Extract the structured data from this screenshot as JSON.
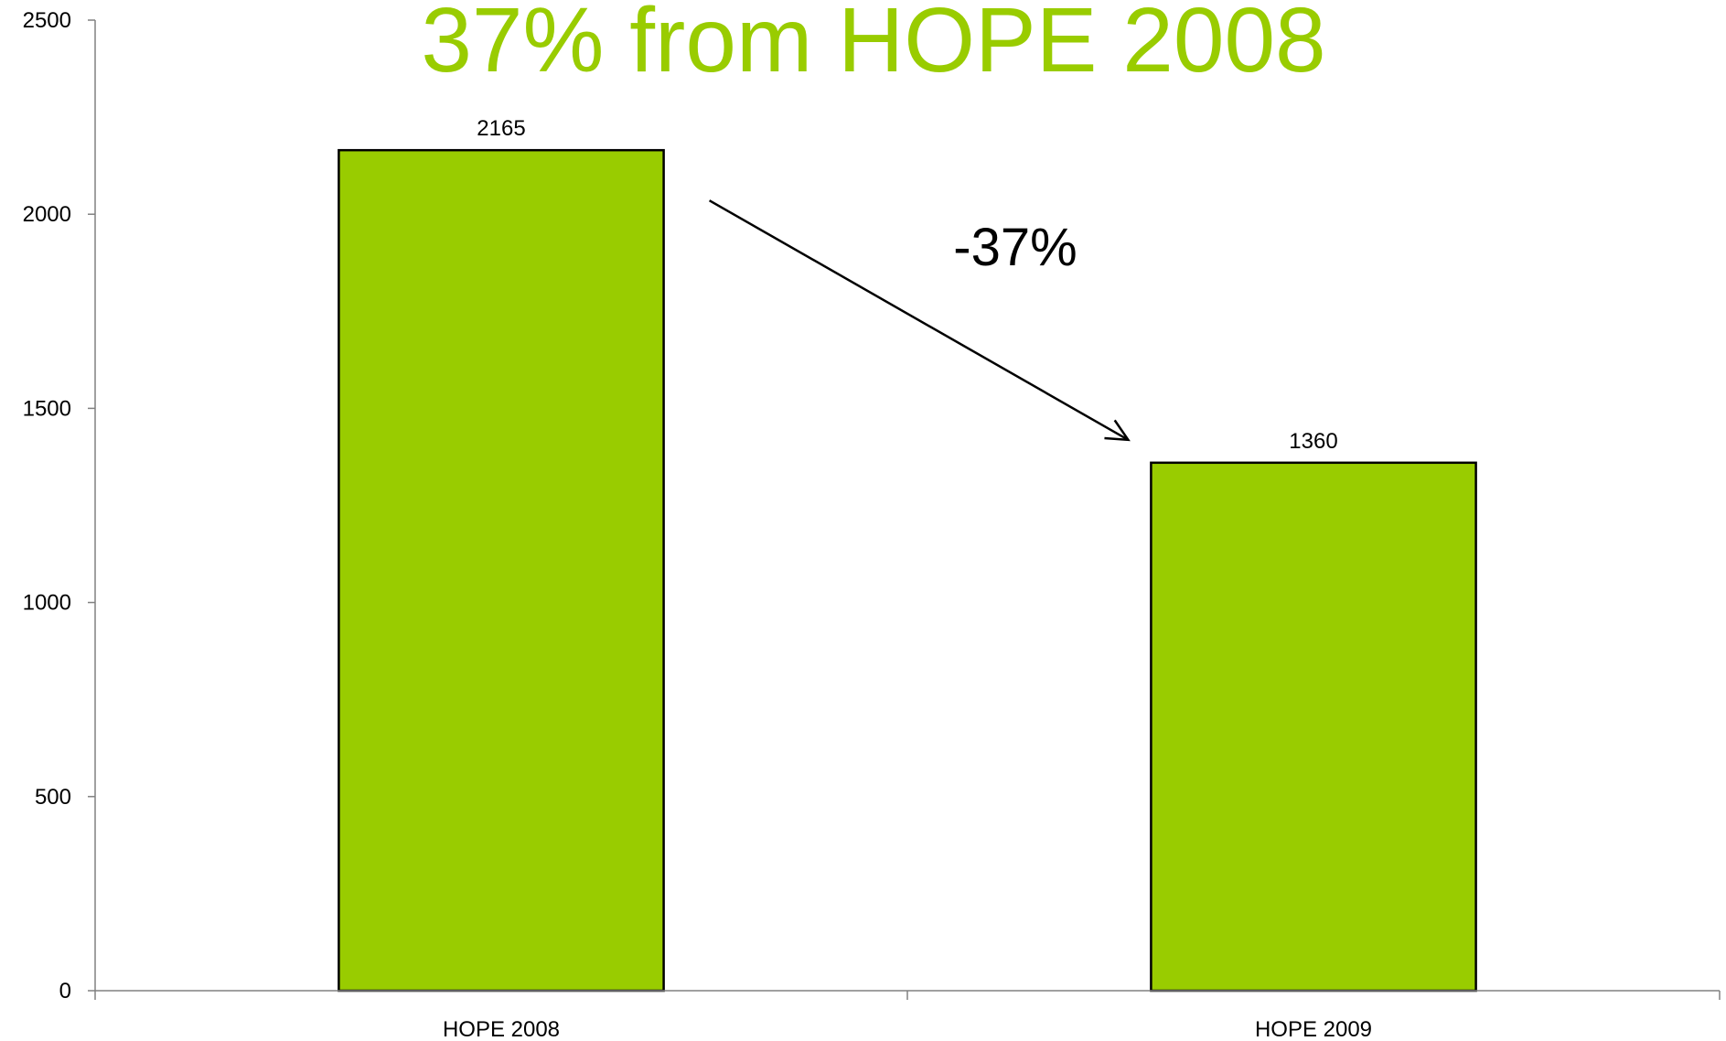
{
  "chart_data": {
    "type": "bar",
    "title": "37% from HOPE 2008",
    "xlabel": "",
    "ylabel": "",
    "categories": [
      "HOPE 2008",
      "HOPE 2009"
    ],
    "values": [
      2165,
      1360
    ],
    "data_labels": [
      "2165",
      "1360"
    ],
    "ylim": [
      0,
      2500
    ],
    "yticks": [
      0,
      500,
      1000,
      1500,
      2000,
      2500
    ],
    "grid": false,
    "legend": "none",
    "annotation": {
      "text": "-37%",
      "arrow_from": "HOPE 2008",
      "arrow_to": "HOPE 2009"
    },
    "colors": {
      "bar_fill": "#99cc00",
      "bar_stroke": "#000000",
      "title": "#99cc00",
      "axis": "#808080"
    }
  }
}
